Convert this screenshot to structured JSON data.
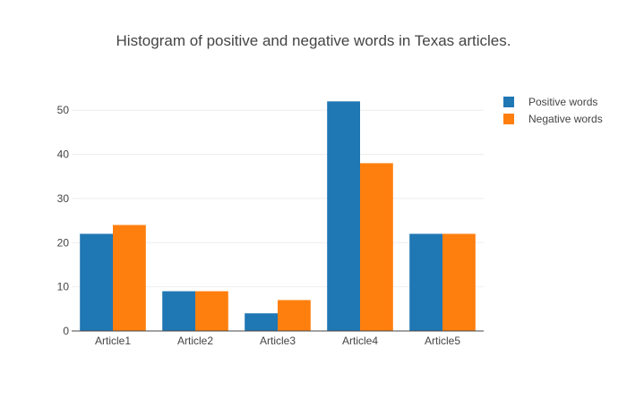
{
  "chart_data": {
    "type": "bar",
    "title": "Histogram of positive and negative words in Texas articles.",
    "xlabel": "",
    "ylabel": "",
    "categories": [
      "Article1",
      "Article2",
      "Article3",
      "Article4",
      "Article5"
    ],
    "series": [
      {
        "name": "Positive words",
        "color": "#1f77b4",
        "values": [
          22,
          9,
          4,
          52,
          22
        ]
      },
      {
        "name": "Negative words",
        "color": "#ff7f0e",
        "values": [
          24,
          9,
          7,
          38,
          22
        ]
      }
    ],
    "y_ticks": [
      0,
      10,
      20,
      30,
      40,
      50
    ],
    "ylim": [
      0,
      54.7
    ],
    "grid": true,
    "legend_position": "top-right"
  }
}
